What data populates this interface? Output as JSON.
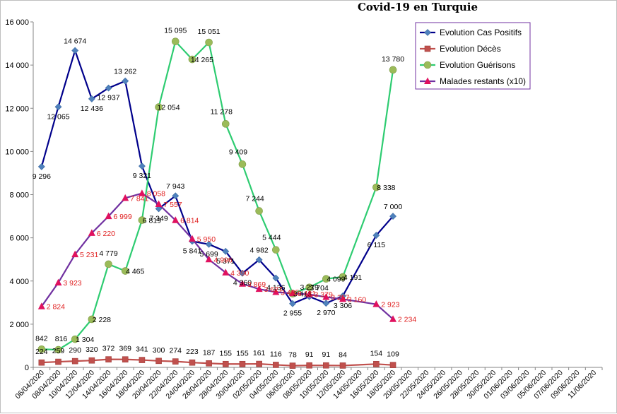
{
  "chart_data": {
    "type": "line",
    "title": "Covid-19 en Turquie",
    "categories": [
      "06/04/2020",
      "08/04/2020",
      "10/04/2020",
      "12/04/2020",
      "14/04/2020",
      "16/04/2020",
      "18/04/2020",
      "20/04/2020",
      "22/04/2020",
      "24/04/2020",
      "26/04/2020",
      "28/04/2020",
      "30/04/2020",
      "02/05/2020",
      "04/05/2020",
      "06/05/2020",
      "08/05/2020",
      "10/05/2020",
      "12/05/2020",
      "14/05/2020",
      "16/05/2020",
      "18/05/2020",
      "20/05/2020",
      "22/05/2020",
      "24/05/2020",
      "26/05/2020",
      "28/05/2020",
      "30/05/2020",
      "01/06/2020",
      "03/06/2020",
      "05/06/2020",
      "07/06/2020",
      "09/06/2020",
      "11/06/2020"
    ],
    "ylim": [
      0,
      16000
    ],
    "yticks": [
      0,
      2000,
      4000,
      6000,
      8000,
      10000,
      12000,
      14000,
      16000
    ],
    "ytick_labels": [
      "0",
      "2 000",
      "4 000",
      "6 000",
      "8 000",
      "10 000",
      "12 000",
      "14 000",
      "16 000"
    ],
    "grid": false,
    "legend_position": "top-right",
    "series": [
      {
        "name": "Evolution Cas Positifs",
        "color": "#00008b",
        "marker_color": "#4f81bd",
        "marker": "diamond",
        "label_color": "#000000",
        "points": [
          [
            0,
            9296
          ],
          [
            1,
            12065
          ],
          [
            2,
            14674
          ],
          [
            3,
            12436
          ],
          [
            4,
            12937
          ],
          [
            5,
            13262
          ],
          [
            6,
            9321
          ],
          [
            7,
            7349
          ],
          [
            8,
            7943
          ],
          [
            9,
            5841
          ],
          [
            10,
            5699
          ],
          [
            11,
            5371
          ],
          [
            12,
            4360
          ],
          [
            13,
            4982
          ],
          [
            14,
            4136
          ],
          [
            15,
            2955
          ],
          [
            16,
            3279
          ],
          [
            17,
            2970
          ],
          [
            18,
            3306
          ],
          [
            20,
            6115
          ],
          [
            21,
            7000
          ]
        ],
        "labels": [
          "9 296",
          "12 065",
          "14 674",
          "12 436",
          "12 937",
          "13 262",
          "9 321",
          "7 349",
          "7 943",
          "5 841",
          "5 699",
          "5 371",
          "4 360",
          "4 982",
          "4 136",
          "2 955",
          "3 279",
          "2 970",
          "3 306",
          "6 115",
          "7 000"
        ]
      },
      {
        "name": "Evolution Décès",
        "color": "#c0504d",
        "marker_color": "#c0504d",
        "marker": "square",
        "label_color": "#000000",
        "points": [
          [
            0,
            224
          ],
          [
            1,
            259
          ],
          [
            2,
            290
          ],
          [
            3,
            320
          ],
          [
            4,
            372
          ],
          [
            5,
            369
          ],
          [
            6,
            341
          ],
          [
            7,
            300
          ],
          [
            8,
            274
          ],
          [
            9,
            223
          ],
          [
            10,
            187
          ],
          [
            11,
            155
          ],
          [
            12,
            155
          ],
          [
            13,
            161
          ],
          [
            14,
            116
          ],
          [
            15,
            78
          ],
          [
            16,
            91
          ],
          [
            17,
            91
          ],
          [
            18,
            84
          ],
          [
            20,
            154
          ],
          [
            21,
            109
          ]
        ],
        "labels": [
          "224",
          "259",
          "290",
          "320",
          "372",
          "369",
          "341",
          "300",
          "274",
          "223",
          "187",
          "155",
          "155",
          "161",
          "116",
          "78",
          "91",
          "91",
          "84",
          "154",
          "109"
        ]
      },
      {
        "name": "Evolution Guérisons",
        "color": "#2ecc71",
        "marker_color": "#9bbb59",
        "marker": "circle",
        "label_color": "#000000",
        "points": [
          [
            0,
            842
          ],
          [
            1,
            816
          ],
          [
            2,
            1304
          ],
          [
            3,
            2228
          ],
          [
            4,
            4779
          ],
          [
            5,
            4465
          ],
          [
            6,
            6819
          ],
          [
            7,
            12054
          ],
          [
            8,
            15095
          ],
          [
            9,
            14265
          ],
          [
            10,
            15051
          ],
          [
            11,
            11278
          ],
          [
            12,
            9409
          ],
          [
            13,
            7244
          ],
          [
            14,
            5444
          ],
          [
            15,
            3413
          ],
          [
            16,
            3704
          ],
          [
            17,
            4099
          ],
          [
            18,
            4191
          ],
          [
            20,
            8338
          ],
          [
            21,
            13780
          ]
        ],
        "labels": [
          "842",
          "816",
          "1 304",
          "2 228",
          "4 779",
          "4 465",
          "6 819",
          "12 054",
          "15 095",
          "14 265",
          "15 051",
          "11 278",
          "9 409",
          "7 244",
          "5 444",
          "3 413",
          "3 704",
          "4 099",
          "4 191",
          "8 338",
          "13 780"
        ]
      },
      {
        "name": "Malades restants (x10)",
        "color": "#7030a0",
        "marker_color": "#e0115f",
        "marker": "triangle",
        "label_color": "#e02020",
        "points": [
          [
            0,
            2824
          ],
          [
            1,
            3923
          ],
          [
            2,
            5231
          ],
          [
            3,
            6220
          ],
          [
            4,
            6999
          ],
          [
            5,
            7841
          ],
          [
            6,
            8058
          ],
          [
            7,
            7557
          ],
          [
            8,
            6814
          ],
          [
            9,
            5950
          ],
          [
            10,
            4996
          ],
          [
            11,
            4390
          ],
          [
            12,
            3869
          ],
          [
            13,
            3627
          ],
          [
            14,
            3485
          ],
          [
            15,
            3431
          ],
          [
            16,
            3379
          ],
          [
            17,
            3257
          ],
          [
            18,
            3160
          ],
          [
            20,
            2923
          ],
          [
            21,
            2234
          ]
        ],
        "labels": [
          "2 824",
          "3 923",
          "5 231",
          "6 220",
          "6 999",
          "7 841",
          "8 058",
          "7 557",
          "6 814",
          "5 950",
          "4 996",
          "4 390",
          "3 869",
          "3 627",
          "3 485",
          "3 431",
          "3 379",
          "3 257",
          "3 160",
          "2 923",
          "2 234"
        ]
      }
    ]
  }
}
